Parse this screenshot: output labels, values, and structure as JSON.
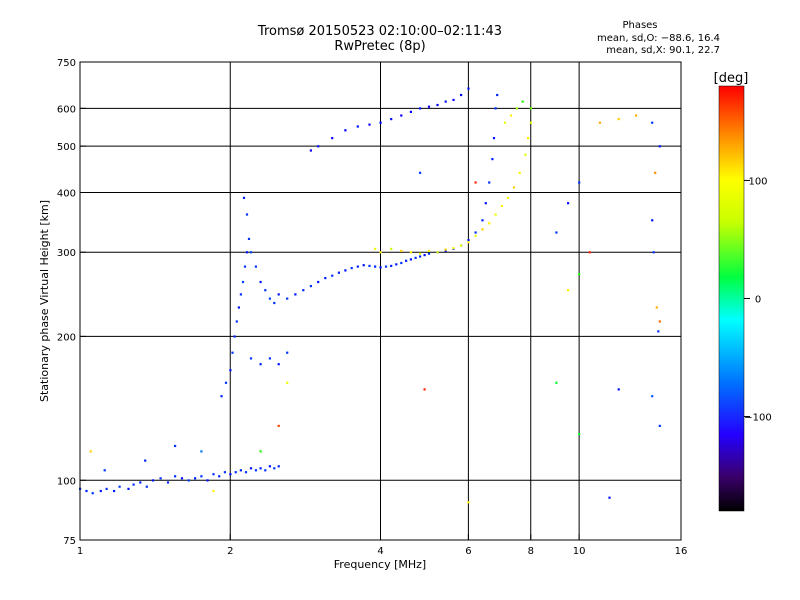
{
  "title": "Tromsø 20150523 02:10:00–02:11:43",
  "subtitle": "RwPretec (8p)",
  "stats": {
    "heading": "Phases",
    "o_line": "mean, sd,O: −88.6, 16.4",
    "x_line": "mean, sd,X:  90.1, 22.7"
  },
  "colorbar": {
    "label": "[deg]",
    "ticks": [
      {
        "value": 100,
        "label": "100"
      },
      {
        "value": 0,
        "label": "0"
      },
      {
        "value": -100,
        "label": "−100"
      }
    ],
    "range": [
      -180,
      180
    ]
  },
  "chart_data": {
    "type": "scatter",
    "xlabel": "Frequency [MHz]",
    "ylabel": "Stationary phase Virtual Height [km]",
    "xscale": "log",
    "yscale": "log",
    "xlim": [
      1,
      16
    ],
    "ylim": [
      75,
      750
    ],
    "xticks": [
      {
        "value": 1,
        "label": "1"
      },
      {
        "value": 2,
        "label": "2"
      },
      {
        "value": 4,
        "label": "4"
      },
      {
        "value": 6,
        "label": "6"
      },
      {
        "value": 8,
        "label": "8"
      },
      {
        "value": 10,
        "label": "10"
      },
      {
        "value": 16,
        "label": "16"
      }
    ],
    "yticks": [
      {
        "value": 75,
        "label": "75"
      },
      {
        "value": 100,
        "label": "100"
      },
      {
        "value": 200,
        "label": "200"
      },
      {
        "value": 300,
        "label": "300"
      },
      {
        "value": 400,
        "label": "400"
      },
      {
        "value": 500,
        "label": "500"
      },
      {
        "value": 600,
        "label": "600"
      },
      {
        "value": 750,
        "label": "750"
      }
    ],
    "grid": true,
    "color_variable": "phase (deg)",
    "points": [
      [
        1.0,
        96,
        -100
      ],
      [
        1.03,
        95,
        -105
      ],
      [
        1.06,
        94,
        -100
      ],
      [
        1.1,
        95,
        -110
      ],
      [
        1.13,
        96,
        -100
      ],
      [
        1.17,
        95,
        -105
      ],
      [
        1.2,
        97,
        -100
      ],
      [
        1.25,
        96,
        -110
      ],
      [
        1.28,
        98,
        -100
      ],
      [
        1.32,
        99,
        -105
      ],
      [
        1.36,
        97,
        -100
      ],
      [
        1.4,
        100,
        -110
      ],
      [
        1.45,
        101,
        -100
      ],
      [
        1.5,
        99,
        -105
      ],
      [
        1.55,
        102,
        -100
      ],
      [
        1.6,
        101,
        -110
      ],
      [
        1.65,
        100,
        -100
      ],
      [
        1.7,
        101,
        -105
      ],
      [
        1.75,
        102,
        -100
      ],
      [
        1.8,
        100,
        -110
      ],
      [
        1.85,
        103,
        -100
      ],
      [
        1.9,
        102,
        -105
      ],
      [
        1.95,
        104,
        -100
      ],
      [
        2.0,
        103,
        -110
      ],
      [
        2.05,
        104,
        -100
      ],
      [
        2.1,
        105,
        -105
      ],
      [
        2.15,
        104,
        -100
      ],
      [
        2.2,
        106,
        -110
      ],
      [
        2.25,
        105,
        -100
      ],
      [
        2.3,
        106,
        -105
      ],
      [
        2.35,
        105,
        -100
      ],
      [
        2.4,
        107,
        -110
      ],
      [
        2.45,
        106,
        -100
      ],
      [
        2.5,
        107,
        -105
      ],
      [
        1.12,
        105,
        -100
      ],
      [
        1.35,
        110,
        -105
      ],
      [
        1.55,
        118,
        -100
      ],
      [
        1.75,
        115,
        -80
      ],
      [
        1.92,
        150,
        -105
      ],
      [
        1.96,
        160,
        -100
      ],
      [
        2.0,
        170,
        -110
      ],
      [
        2.02,
        185,
        -100
      ],
      [
        2.04,
        200,
        -105
      ],
      [
        2.06,
        215,
        -100
      ],
      [
        2.08,
        230,
        -110
      ],
      [
        2.1,
        245,
        -100
      ],
      [
        2.12,
        260,
        -95
      ],
      [
        2.14,
        280,
        -100
      ],
      [
        2.16,
        300,
        -110
      ],
      [
        2.18,
        320,
        -100
      ],
      [
        2.2,
        300,
        -95
      ],
      [
        2.25,
        280,
        -100
      ],
      [
        2.3,
        260,
        -110
      ],
      [
        2.35,
        250,
        -100
      ],
      [
        2.4,
        240,
        -95
      ],
      [
        2.45,
        235,
        -100
      ],
      [
        2.5,
        245,
        -110
      ],
      [
        2.2,
        180,
        -100
      ],
      [
        2.3,
        175,
        -105
      ],
      [
        2.4,
        180,
        -100
      ],
      [
        2.5,
        175,
        -110
      ],
      [
        2.6,
        185,
        -100
      ],
      [
        2.13,
        390,
        -105
      ],
      [
        2.16,
        360,
        -100
      ],
      [
        2.6,
        240,
        -100
      ],
      [
        2.7,
        245,
        -110
      ],
      [
        2.8,
        250,
        -105
      ],
      [
        2.9,
        255,
        -100
      ],
      [
        3.0,
        260,
        -110
      ],
      [
        3.1,
        265,
        -105
      ],
      [
        3.2,
        268,
        -100
      ],
      [
        3.3,
        272,
        -105
      ],
      [
        3.4,
        275,
        -110
      ],
      [
        3.5,
        278,
        -100
      ],
      [
        3.6,
        280,
        -105
      ],
      [
        3.7,
        282,
        -110
      ],
      [
        3.8,
        281,
        -100
      ],
      [
        3.9,
        280,
        -105
      ],
      [
        4.0,
        279,
        -110
      ],
      [
        4.1,
        280,
        -100
      ],
      [
        4.2,
        281,
        -105
      ],
      [
        4.3,
        283,
        -110
      ],
      [
        4.4,
        285,
        -100
      ],
      [
        4.5,
        288,
        -105
      ],
      [
        4.6,
        290,
        -110
      ],
      [
        4.7,
        292,
        -100
      ],
      [
        4.8,
        294,
        -105
      ],
      [
        4.9,
        296,
        -110
      ],
      [
        5.0,
        298,
        -100
      ],
      [
        5.2,
        300,
        -105
      ],
      [
        5.4,
        302,
        -110
      ],
      [
        5.6,
        305,
        -100
      ],
      [
        5.8,
        310,
        -105
      ],
      [
        6.0,
        318,
        -110
      ],
      [
        6.2,
        330,
        -100
      ],
      [
        6.4,
        350,
        -105
      ],
      [
        6.5,
        380,
        -110
      ],
      [
        6.6,
        420,
        -100
      ],
      [
        6.7,
        470,
        -105
      ],
      [
        6.75,
        520,
        -110
      ],
      [
        6.8,
        600,
        -100
      ],
      [
        6.85,
        640,
        -105
      ],
      [
        3.9,
        305,
        100
      ],
      [
        4.0,
        300,
        110
      ],
      [
        4.2,
        305,
        90
      ],
      [
        4.4,
        302,
        120
      ],
      [
        4.6,
        300,
        110
      ],
      [
        4.8,
        298,
        100
      ],
      [
        5.0,
        302,
        110
      ],
      [
        5.2,
        300,
        100
      ],
      [
        5.4,
        304,
        120
      ],
      [
        5.6,
        306,
        110
      ],
      [
        5.8,
        310,
        100
      ],
      [
        6.0,
        315,
        110
      ],
      [
        6.2,
        325,
        100
      ],
      [
        6.4,
        335,
        120
      ],
      [
        6.6,
        345,
        110
      ],
      [
        6.8,
        360,
        100
      ],
      [
        7.0,
        375,
        110
      ],
      [
        7.2,
        390,
        100
      ],
      [
        7.4,
        410,
        120
      ],
      [
        7.6,
        440,
        110
      ],
      [
        7.8,
        480,
        100
      ],
      [
        7.9,
        520,
        110
      ],
      [
        8.0,
        560,
        100
      ],
      [
        8.0,
        600,
        60
      ],
      [
        7.7,
        620,
        40
      ],
      [
        7.5,
        600,
        80
      ],
      [
        7.3,
        580,
        110
      ],
      [
        7.1,
        560,
        100
      ],
      [
        3.0,
        500,
        -110
      ],
      [
        3.2,
        520,
        -120
      ],
      [
        3.4,
        540,
        -115
      ],
      [
        3.6,
        550,
        -110
      ],
      [
        3.8,
        555,
        -120
      ],
      [
        4.0,
        560,
        -115
      ],
      [
        4.2,
        570,
        -110
      ],
      [
        4.4,
        580,
        -120
      ],
      [
        4.6,
        590,
        -115
      ],
      [
        4.8,
        600,
        -110
      ],
      [
        5.0,
        605,
        -120
      ],
      [
        5.2,
        610,
        -115
      ],
      [
        5.4,
        620,
        -110
      ],
      [
        5.6,
        625,
        -120
      ],
      [
        5.8,
        640,
        -115
      ],
      [
        6.0,
        660,
        -110
      ],
      [
        2.9,
        490,
        -120
      ],
      [
        12.0,
        570,
        120
      ],
      [
        13.0,
        580,
        130
      ],
      [
        14.0,
        560,
        -100
      ],
      [
        14.5,
        500,
        -110
      ],
      [
        14.2,
        440,
        140
      ],
      [
        14.0,
        350,
        -110
      ],
      [
        14.1,
        300,
        -100
      ],
      [
        14.3,
        230,
        130
      ],
      [
        14.5,
        215,
        150
      ],
      [
        14.4,
        205,
        -100
      ],
      [
        14.0,
        150,
        -90
      ],
      [
        14.5,
        130,
        -100
      ],
      [
        11.0,
        560,
        130
      ],
      [
        10.0,
        420,
        -100
      ],
      [
        9.5,
        380,
        -110
      ],
      [
        9.0,
        330,
        -100
      ],
      [
        10.5,
        300,
        170
      ],
      [
        10.0,
        270,
        40
      ],
      [
        9.0,
        160,
        20
      ],
      [
        10.0,
        125,
        20
      ],
      [
        11.5,
        92,
        -110
      ],
      [
        12.0,
        155,
        -110
      ],
      [
        9.5,
        250,
        110
      ],
      [
        6.0,
        90,
        110
      ],
      [
        6.2,
        420,
        170
      ],
      [
        4.8,
        440,
        -100
      ],
      [
        4.9,
        155,
        170
      ],
      [
        1.05,
        115,
        120
      ],
      [
        1.85,
        95,
        110
      ],
      [
        2.3,
        115,
        40
      ],
      [
        2.5,
        130,
        160
      ],
      [
        2.6,
        160,
        100
      ]
    ]
  }
}
